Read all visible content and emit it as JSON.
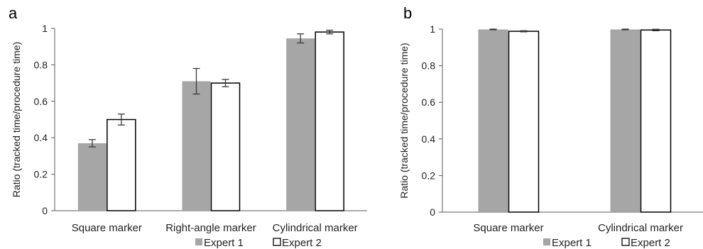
{
  "chart_data": [
    {
      "panel": "a",
      "type": "bar",
      "title": "",
      "xlabel": "",
      "ylabel": "Ratio (tracked time/procedure time)",
      "ylim": [
        0,
        1
      ],
      "yticks": [
        "0",
        "0.2",
        "0.4",
        "0.6",
        "0.8",
        "1"
      ],
      "categories": [
        "Square marker",
        "Right-angle marker",
        "Cylindrical marker"
      ],
      "series": [
        {
          "name": "Expert 1",
          "values": [
            0.37,
            0.71,
            0.945
          ],
          "errors": [
            0.02,
            0.07,
            0.025
          ],
          "color": "#a6a6a6"
        },
        {
          "name": "Expert 2",
          "values": [
            0.5,
            0.7,
            0.98
          ],
          "errors": [
            0.03,
            0.02,
            0.01
          ],
          "color": "#ffffff"
        }
      ],
      "legend": "bottom",
      "grid": false
    },
    {
      "panel": "b",
      "type": "bar",
      "title": "",
      "xlabel": "",
      "ylabel": "Ratio (tracked time/procedure time)",
      "ylim": [
        0,
        1
      ],
      "yticks": [
        "0",
        "0.2",
        "0.4",
        "0.6",
        "0.8",
        "1"
      ],
      "categories": [
        "Square marker",
        "Cylindrical marker"
      ],
      "series": [
        {
          "name": "Expert 1",
          "values": [
            0.998,
            0.998
          ],
          "errors": [
            0.002,
            0.002
          ],
          "color": "#a6a6a6"
        },
        {
          "name": "Expert 2",
          "values": [
            0.988,
            0.995
          ],
          "errors": [
            0.003,
            0.004
          ],
          "color": "#ffffff"
        }
      ],
      "legend": "bottom",
      "grid": false
    }
  ]
}
